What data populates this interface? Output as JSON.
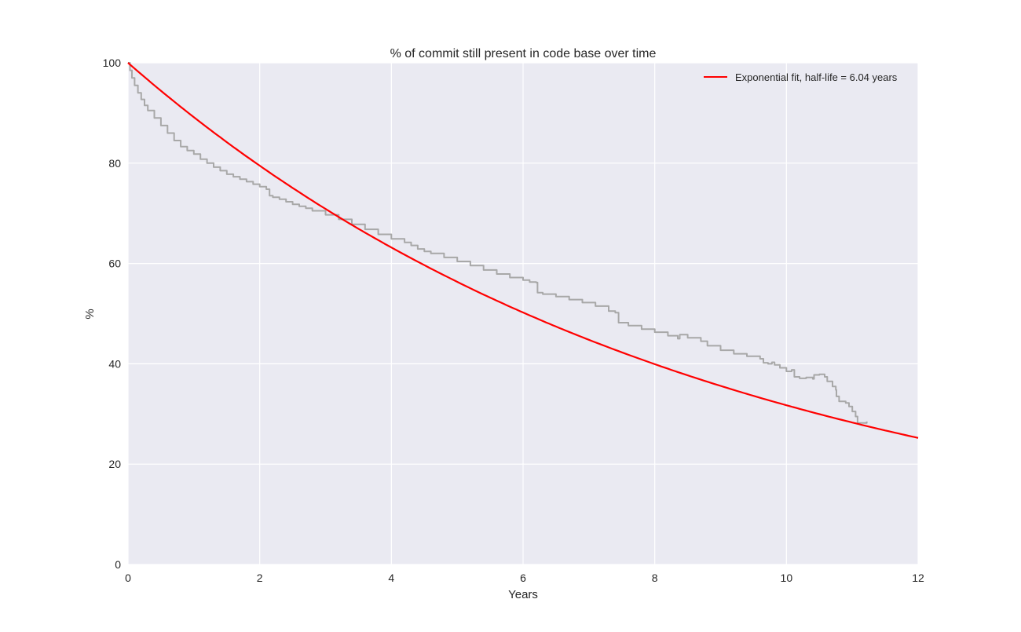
{
  "chart_data": {
    "type": "line",
    "title": "% of commit still present in code base over time",
    "xlabel": "Years",
    "ylabel": "%",
    "xlim": [
      0,
      12
    ],
    "ylim": [
      0,
      100
    ],
    "xticks": [
      "0",
      "2",
      "4",
      "6",
      "8",
      "10",
      "12"
    ],
    "yticks": [
      "0",
      "20",
      "40",
      "60",
      "80",
      "100"
    ],
    "grid": true,
    "legend_position": "top-right",
    "series": [
      {
        "name": "",
        "color": "#a8a8a8",
        "shape": "step",
        "x": [
          0,
          0.03,
          0.06,
          0.1,
          0.15,
          0.2,
          0.25,
          0.3,
          0.4,
          0.5,
          0.6,
          0.7,
          0.8,
          0.9,
          1.0,
          1.1,
          1.2,
          1.3,
          1.4,
          1.5,
          1.6,
          1.7,
          1.8,
          1.9,
          2.0,
          2.1,
          2.15,
          2.2,
          2.3,
          2.4,
          2.5,
          2.6,
          2.7,
          2.8,
          3.0,
          3.2,
          3.4,
          3.6,
          3.8,
          4.0,
          4.2,
          4.3,
          4.4,
          4.5,
          4.6,
          4.8,
          5.0,
          5.2,
          5.4,
          5.6,
          5.8,
          6.0,
          6.1,
          6.2,
          6.22,
          6.3,
          6.5,
          6.7,
          6.9,
          7.1,
          7.3,
          7.4,
          7.45,
          7.6,
          7.8,
          8.0,
          8.2,
          8.35,
          8.38,
          8.5,
          8.7,
          8.8,
          9.0,
          9.2,
          9.4,
          9.6,
          9.65,
          9.72,
          9.78,
          9.82,
          9.9,
          10.0,
          10.08,
          10.12,
          10.2,
          10.3,
          10.4,
          10.42,
          10.5,
          10.58,
          10.62,
          10.7,
          10.75,
          10.76,
          10.8,
          10.9,
          10.95,
          11.0,
          11.05,
          11.08,
          11.15,
          11.22
        ],
        "y": [
          100,
          98.5,
          97,
          95.5,
          94,
          92.7,
          91.5,
          90.5,
          89,
          87.5,
          86,
          84.5,
          83.3,
          82.5,
          81.8,
          80.8,
          80,
          79.2,
          78.5,
          77.8,
          77.3,
          76.8,
          76.3,
          75.8,
          75.3,
          74.8,
          73.5,
          73.2,
          72.8,
          72.3,
          71.8,
          71.4,
          71,
          70.5,
          69.7,
          68.8,
          67.8,
          66.8,
          65.8,
          64.9,
          64.2,
          63.6,
          62.9,
          62.4,
          62,
          61.2,
          60.4,
          59.6,
          58.7,
          57.9,
          57.2,
          56.7,
          56.3,
          56.2,
          54.2,
          53.9,
          53.4,
          52.8,
          52.2,
          51.5,
          50.5,
          50.2,
          48.2,
          47.6,
          46.9,
          46.3,
          45.6,
          45.0,
          45.8,
          45.2,
          44.5,
          43.6,
          42.7,
          42.0,
          41.5,
          41.0,
          40.2,
          40.0,
          40.3,
          39.8,
          39.2,
          38.5,
          38.8,
          37.4,
          37.1,
          37.3,
          37.0,
          37.8,
          37.9,
          37.4,
          36.5,
          35.5,
          34.8,
          33.5,
          32.5,
          32.2,
          31.5,
          30.5,
          29.5,
          28.2,
          28.2,
          28.5
        ]
      },
      {
        "name": "Exponential fit, half-life = 6.04 years",
        "color": "#ff0000",
        "shape": "exponential",
        "half_life": 6.04,
        "x": [
          0,
          1,
          2,
          3,
          4,
          5,
          6,
          7,
          8,
          9,
          10,
          11,
          12
        ],
        "y": [
          100,
          89.17,
          79.5,
          70.89,
          63.21,
          56.36,
          50.26,
          44.81,
          39.96,
          35.63,
          31.77,
          28.33,
          25.26
        ]
      }
    ]
  }
}
